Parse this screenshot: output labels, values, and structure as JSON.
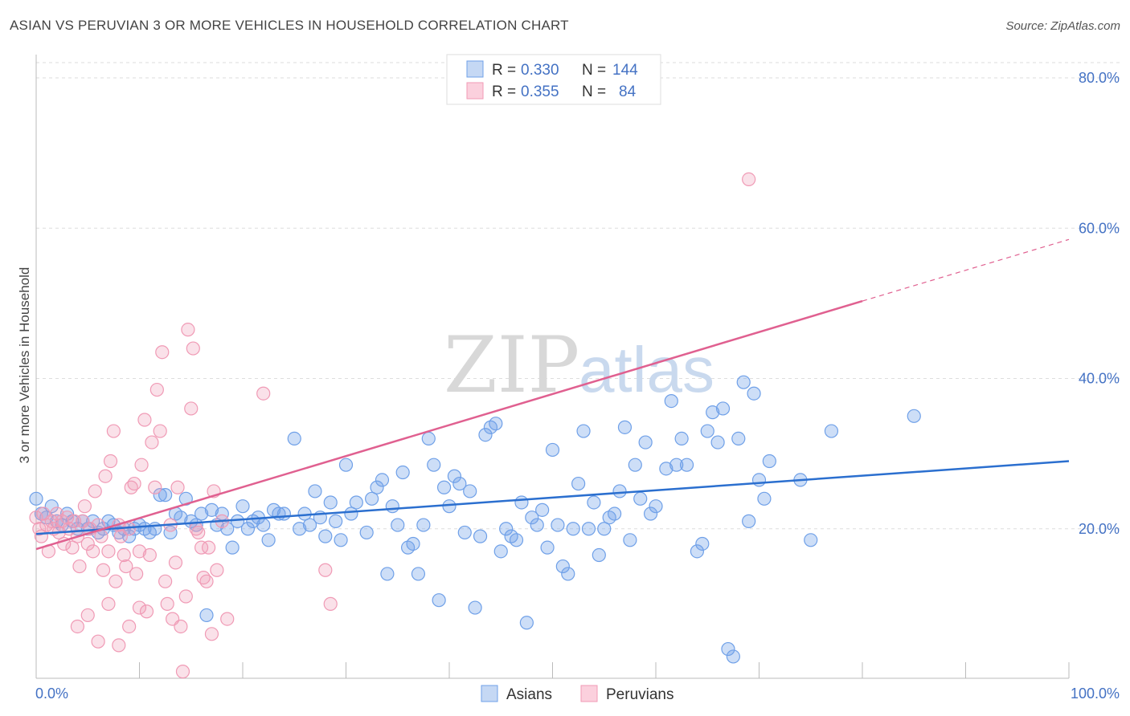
{
  "title": "ASIAN VS PERUVIAN 3 OR MORE VEHICLES IN HOUSEHOLD CORRELATION CHART",
  "source": "Source: ZipAtlas.com",
  "watermark": {
    "zip": "ZIP",
    "atlas": "atlas"
  },
  "legend": {
    "rows": [
      {
        "r_label": "R =",
        "r_value": "0.330",
        "n_label": "N =",
        "n_value": "144"
      },
      {
        "r_label": "R =",
        "r_value": "0.355",
        "n_label": "N =",
        "n_value": "84"
      }
    ]
  },
  "bottom_legend": [
    "Asians",
    "Peruvians"
  ],
  "chart_data": {
    "type": "scatter",
    "title": "ASIAN VS PERUVIAN 3 OR MORE VEHICLES IN HOUSEHOLD CORRELATION CHART",
    "xlabel": "",
    "ylabel": "3 or more Vehicles in Household",
    "xlim": [
      0,
      100
    ],
    "ylim": [
      0,
      85
    ],
    "x_tick_labels": [
      "0.0%",
      "100.0%"
    ],
    "y_ticks": [
      20,
      40,
      60,
      80
    ],
    "y_tick_labels": [
      "20.0%",
      "40.0%",
      "60.0%",
      "80.0%"
    ],
    "grid": "horizontal dashed",
    "legend_position": "top-center",
    "colors": {
      "asians": "#6fa0e8",
      "asians_line": "#2b6fcf",
      "peruvians": "#f09ab5",
      "peruvians_line": "#e06090"
    },
    "series": [
      {
        "name": "Asians",
        "r": 0.33,
        "n": 144,
        "trend": {
          "x": [
            0,
            100
          ],
          "y": [
            19.3,
            29.0
          ]
        },
        "points": [
          [
            0,
            24
          ],
          [
            0.5,
            22
          ],
          [
            1,
            21.5
          ],
          [
            1.5,
            23
          ],
          [
            2,
            21
          ],
          [
            2.5,
            20.5
          ],
          [
            3,
            22
          ],
          [
            3.5,
            21
          ],
          [
            4,
            20
          ],
          [
            4.5,
            21
          ],
          [
            5,
            20
          ],
          [
            5.5,
            21
          ],
          [
            6,
            19.5
          ],
          [
            6.5,
            20
          ],
          [
            7,
            21
          ],
          [
            7.5,
            20.5
          ],
          [
            8,
            19.5
          ],
          [
            8.5,
            20
          ],
          [
            9,
            19
          ],
          [
            9.5,
            20
          ],
          [
            10,
            20.5
          ],
          [
            10.5,
            20
          ],
          [
            11,
            19.5
          ],
          [
            11.5,
            20
          ],
          [
            12,
            24.5
          ],
          [
            12.5,
            24.5
          ],
          [
            13,
            19.5
          ],
          [
            13.5,
            22
          ],
          [
            14,
            21.5
          ],
          [
            14.5,
            24
          ],
          [
            15,
            21
          ],
          [
            15.5,
            20.5
          ],
          [
            16,
            22
          ],
          [
            16.5,
            8.5
          ],
          [
            17,
            22.5
          ],
          [
            17.5,
            20.5
          ],
          [
            18,
            22
          ],
          [
            18.5,
            20
          ],
          [
            19,
            17.5
          ],
          [
            19.5,
            21
          ],
          [
            20,
            23
          ],
          [
            20.5,
            20
          ],
          [
            21,
            21
          ],
          [
            21.5,
            21.5
          ],
          [
            22,
            20.5
          ],
          [
            22.5,
            18.5
          ],
          [
            23,
            22.5
          ],
          [
            23.5,
            22
          ],
          [
            24,
            22
          ],
          [
            25,
            32
          ],
          [
            25.5,
            20
          ],
          [
            26,
            22
          ],
          [
            26.5,
            20.5
          ],
          [
            27,
            25
          ],
          [
            27.5,
            21.5
          ],
          [
            28,
            19
          ],
          [
            28.5,
            23.5
          ],
          [
            29,
            21
          ],
          [
            29.5,
            18.5
          ],
          [
            30,
            28.5
          ],
          [
            30.5,
            22
          ],
          [
            31,
            23.5
          ],
          [
            32,
            19.5
          ],
          [
            32.5,
            24
          ],
          [
            33,
            25.5
          ],
          [
            33.5,
            26.5
          ],
          [
            34,
            14
          ],
          [
            34.5,
            23
          ],
          [
            35,
            20.5
          ],
          [
            35.5,
            27.5
          ],
          [
            36,
            17.5
          ],
          [
            36.5,
            18
          ],
          [
            37,
            14
          ],
          [
            37.5,
            20.5
          ],
          [
            38,
            32
          ],
          [
            38.5,
            28.5
          ],
          [
            39,
            10.5
          ],
          [
            39.5,
            25.5
          ],
          [
            40,
            23
          ],
          [
            40.5,
            27
          ],
          [
            41,
            26
          ],
          [
            41.5,
            19.5
          ],
          [
            42,
            25
          ],
          [
            42.5,
            9.5
          ],
          [
            43,
            19
          ],
          [
            43.5,
            32.5
          ],
          [
            44,
            33.5
          ],
          [
            44.5,
            34
          ],
          [
            45,
            17
          ],
          [
            45.5,
            20
          ],
          [
            46,
            19
          ],
          [
            46.5,
            18.5
          ],
          [
            47,
            23.5
          ],
          [
            47.5,
            7.5
          ],
          [
            48,
            21.5
          ],
          [
            48.5,
            20.5
          ],
          [
            49,
            22.5
          ],
          [
            49.5,
            17.5
          ],
          [
            50,
            30.5
          ],
          [
            50.5,
            20.5
          ],
          [
            51,
            15
          ],
          [
            51.5,
            14
          ],
          [
            52,
            20
          ],
          [
            52.5,
            26
          ],
          [
            53,
            33
          ],
          [
            53.5,
            20
          ],
          [
            54,
            23.5
          ],
          [
            54.5,
            16.5
          ],
          [
            55,
            20
          ],
          [
            55.5,
            21.5
          ],
          [
            56,
            22
          ],
          [
            56.5,
            25
          ],
          [
            57,
            33.5
          ],
          [
            57.5,
            18.5
          ],
          [
            58,
            28.5
          ],
          [
            58.5,
            24
          ],
          [
            59,
            31.5
          ],
          [
            59.5,
            22
          ],
          [
            60,
            23
          ],
          [
            61,
            28
          ],
          [
            61.5,
            37
          ],
          [
            62,
            28.5
          ],
          [
            62.5,
            32
          ],
          [
            63,
            28.5
          ],
          [
            64,
            17
          ],
          [
            64.5,
            18
          ],
          [
            65,
            33
          ],
          [
            65.5,
            35.5
          ],
          [
            66,
            31.5
          ],
          [
            66.5,
            36
          ],
          [
            67,
            4
          ],
          [
            67.5,
            3
          ],
          [
            68,
            32
          ],
          [
            68.5,
            39.5
          ],
          [
            69,
            21
          ],
          [
            69.5,
            38
          ],
          [
            70,
            26.5
          ],
          [
            70.5,
            24
          ],
          [
            71,
            29
          ],
          [
            74,
            26.5
          ],
          [
            75,
            18.5
          ],
          [
            77,
            33
          ],
          [
            85,
            35
          ]
        ]
      },
      {
        "name": "Peruvians",
        "r": 0.355,
        "n": 84,
        "trend": {
          "x": [
            0,
            80
          ],
          "y": [
            17.3,
            50.3
          ]
        },
        "trend_dashed": {
          "x": [
            80,
            100
          ],
          "y": [
            50.3,
            58.5
          ]
        },
        "points": [
          [
            0,
            21.5
          ],
          [
            0.3,
            20
          ],
          [
            0.5,
            19
          ],
          [
            0.7,
            22
          ],
          [
            1,
            20.5
          ],
          [
            1.2,
            17
          ],
          [
            1.5,
            21
          ],
          [
            1.7,
            20
          ],
          [
            2,
            22
          ],
          [
            2.2,
            19.5
          ],
          [
            2.5,
            21
          ],
          [
            2.7,
            18
          ],
          [
            3,
            21.5
          ],
          [
            3.2,
            20
          ],
          [
            3.5,
            17.5
          ],
          [
            3.7,
            21
          ],
          [
            4,
            19
          ],
          [
            4.2,
            15
          ],
          [
            4.5,
            21
          ],
          [
            4.7,
            23
          ],
          [
            5,
            18
          ],
          [
            5.2,
            20
          ],
          [
            5.5,
            17
          ],
          [
            5.7,
            25
          ],
          [
            6,
            20.5
          ],
          [
            6.3,
            19
          ],
          [
            6.5,
            14.5
          ],
          [
            6.7,
            27
          ],
          [
            7,
            17
          ],
          [
            7.2,
            29
          ],
          [
            7.5,
            33
          ],
          [
            7.7,
            13
          ],
          [
            8,
            20.5
          ],
          [
            8.2,
            19
          ],
          [
            8.5,
            16.5
          ],
          [
            8.7,
            15
          ],
          [
            9,
            20
          ],
          [
            9.2,
            25.5
          ],
          [
            9.5,
            26
          ],
          [
            9.7,
            14
          ],
          [
            10,
            17
          ],
          [
            10.2,
            28.5
          ],
          [
            10.5,
            34.5
          ],
          [
            10.7,
            9
          ],
          [
            11,
            16.5
          ],
          [
            11.2,
            31.5
          ],
          [
            11.5,
            25.5
          ],
          [
            11.7,
            38.5
          ],
          [
            12,
            33
          ],
          [
            12.2,
            43.5
          ],
          [
            12.5,
            13
          ],
          [
            12.7,
            10
          ],
          [
            13,
            20.5
          ],
          [
            13.2,
            8
          ],
          [
            13.5,
            15.5
          ],
          [
            13.7,
            25.5
          ],
          [
            14,
            7
          ],
          [
            14.2,
            1
          ],
          [
            14.5,
            11
          ],
          [
            14.7,
            46.5
          ],
          [
            15,
            36
          ],
          [
            15.2,
            44
          ],
          [
            15.5,
            20
          ],
          [
            15.7,
            19.5
          ],
          [
            16,
            17.5
          ],
          [
            16.2,
            13.5
          ],
          [
            16.5,
            13
          ],
          [
            16.7,
            17.5
          ],
          [
            17,
            6
          ],
          [
            17.2,
            25
          ],
          [
            17.5,
            14.5
          ],
          [
            18,
            21
          ],
          [
            18.5,
            8
          ],
          [
            22,
            38
          ],
          [
            28,
            14.5
          ],
          [
            28.5,
            10
          ],
          [
            69,
            66.5
          ],
          [
            4,
            7
          ],
          [
            5,
            8.5
          ],
          [
            6,
            5
          ],
          [
            7,
            10
          ],
          [
            8,
            4.5
          ],
          [
            9,
            7
          ],
          [
            10,
            9.5
          ]
        ]
      }
    ]
  }
}
